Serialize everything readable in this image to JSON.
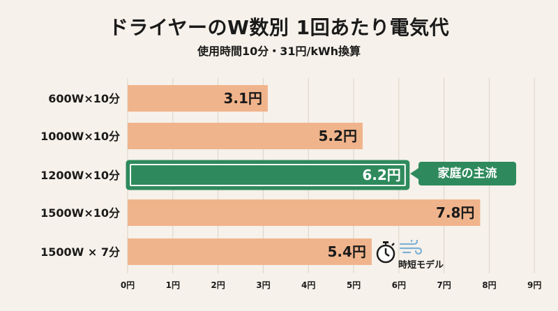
{
  "title": "ドライヤーのW数別 1回あたり電気代",
  "subtitle": "使用時間10分・31円/kWh換算",
  "callout": "家庭の主流",
  "quick_mode_label": "時短モデル",
  "chart_data": {
    "type": "bar",
    "orientation": "horizontal",
    "title": "ドライヤーのW数別 1回あたり電気代",
    "subtitle": "使用時間10分・31円/kWh換算",
    "categories": [
      "600W×10分",
      "1000W×10分",
      "1200W×10分",
      "1500W×10分",
      "1500W × 7分"
    ],
    "values": [
      3.1,
      5.2,
      6.2,
      7.8,
      5.4
    ],
    "value_labels": [
      "3.1円",
      "5.2円",
      "6.2円",
      "7.8円",
      "5.4円"
    ],
    "highlight_index": 2,
    "xlim": [
      0,
      9
    ],
    "x_ticks": [
      "0円",
      "1円",
      "2円",
      "3円",
      "4円",
      "5円",
      "6円",
      "7円",
      "8円",
      "9円"
    ],
    "grid": true,
    "colors": {
      "bar": "#f0b48c",
      "highlight": "#2e8a5c",
      "grid": "#d9d2c8",
      "background": "#f6f1ea"
    }
  }
}
